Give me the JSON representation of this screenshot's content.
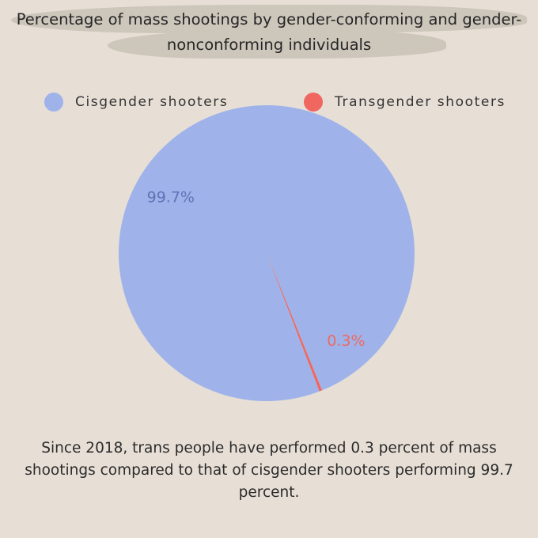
{
  "title": "Percentage of mass shootings by gender-conforming and gender-nonconforming individuals",
  "caption": "Since 2018, trans people have performed 0.3 percent of mass shootings compared to that of cisgender shooters performing 99.7 percent.",
  "colors": {
    "background": "#e7dfd6",
    "cisgender": "#9fb3ea",
    "transgender": "#f0675f",
    "cis_label": "#5f72b5",
    "trans_label": "#ec6a62"
  },
  "legend": [
    {
      "label": "Cisgender shooters",
      "color": "#9fb3ea"
    },
    {
      "label": "Transgender shooters",
      "color": "#f0675f"
    }
  ],
  "chart_data": {
    "type": "pie",
    "title": "Percentage of mass shootings by gender-conforming and gender-nonconforming individuals",
    "legend_position": "top",
    "slices": [
      {
        "label": "Cisgender shooters",
        "value": 99.7,
        "display": "99.7%",
        "color": "#9fb3ea"
      },
      {
        "label": "Transgender shooters",
        "value": 0.3,
        "display": "0.3%",
        "color": "#f0675f"
      }
    ]
  }
}
